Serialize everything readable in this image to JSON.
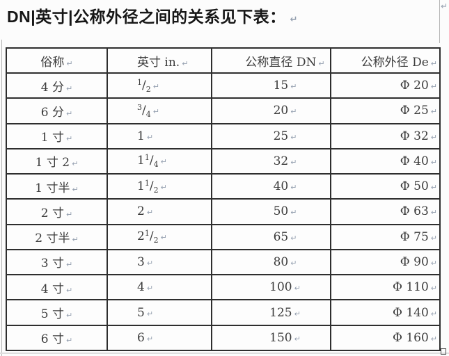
{
  "page": {
    "title": "DN|英寸|公称外径之间的关系见下表："
  },
  "marks": {
    "return_mark": "↵"
  },
  "colors": {
    "background": "#fcfcfc",
    "table_border": "#2e2e2e",
    "text": "#3c3c3c",
    "formatting_mark": "#95a0b0",
    "margin_line": "#b4b4b4"
  },
  "table": {
    "headers": [
      "俗称",
      "英寸 in.",
      "公称直径 DN",
      "公称外径 De"
    ],
    "rows": [
      {
        "common": "4 分",
        "inch": {
          "whole": "",
          "num": "1",
          "den": "2"
        },
        "dn": "15",
        "de": "Φ 20"
      },
      {
        "common": "6 分",
        "inch": {
          "whole": "",
          "num": "3",
          "den": "4"
        },
        "dn": "20",
        "de": "Φ 25"
      },
      {
        "common": "1 寸",
        "inch": {
          "whole": "1",
          "num": "",
          "den": ""
        },
        "dn": "25",
        "de": "Φ 32"
      },
      {
        "common": "1 寸 2",
        "inch": {
          "whole": "1",
          "num": "1",
          "den": "4"
        },
        "dn": "32",
        "de": "Φ 40"
      },
      {
        "common": "1 寸半",
        "inch": {
          "whole": "1",
          "num": "1",
          "den": "2"
        },
        "dn": "40",
        "de": "Φ 50"
      },
      {
        "common": "2 寸",
        "inch": {
          "whole": "2",
          "num": "",
          "den": ""
        },
        "dn": "50",
        "de": "Φ 63"
      },
      {
        "common": "2 寸半",
        "inch": {
          "whole": "2",
          "num": "1",
          "den": "2"
        },
        "dn": "65",
        "de": "Φ 75"
      },
      {
        "common": "3 寸",
        "inch": {
          "whole": "3",
          "num": "",
          "den": ""
        },
        "dn": "80",
        "de": "Φ 90"
      },
      {
        "common": "4 寸",
        "inch": {
          "whole": "4",
          "num": "",
          "den": ""
        },
        "dn": "100",
        "de": "Φ 110"
      },
      {
        "common": "5 寸",
        "inch": {
          "whole": "5",
          "num": "",
          "den": ""
        },
        "dn": "125",
        "de": "Φ 140"
      },
      {
        "common": "6 寸",
        "inch": {
          "whole": "6",
          "num": "",
          "den": ""
        },
        "dn": "150",
        "de": "Φ 160"
      }
    ]
  }
}
